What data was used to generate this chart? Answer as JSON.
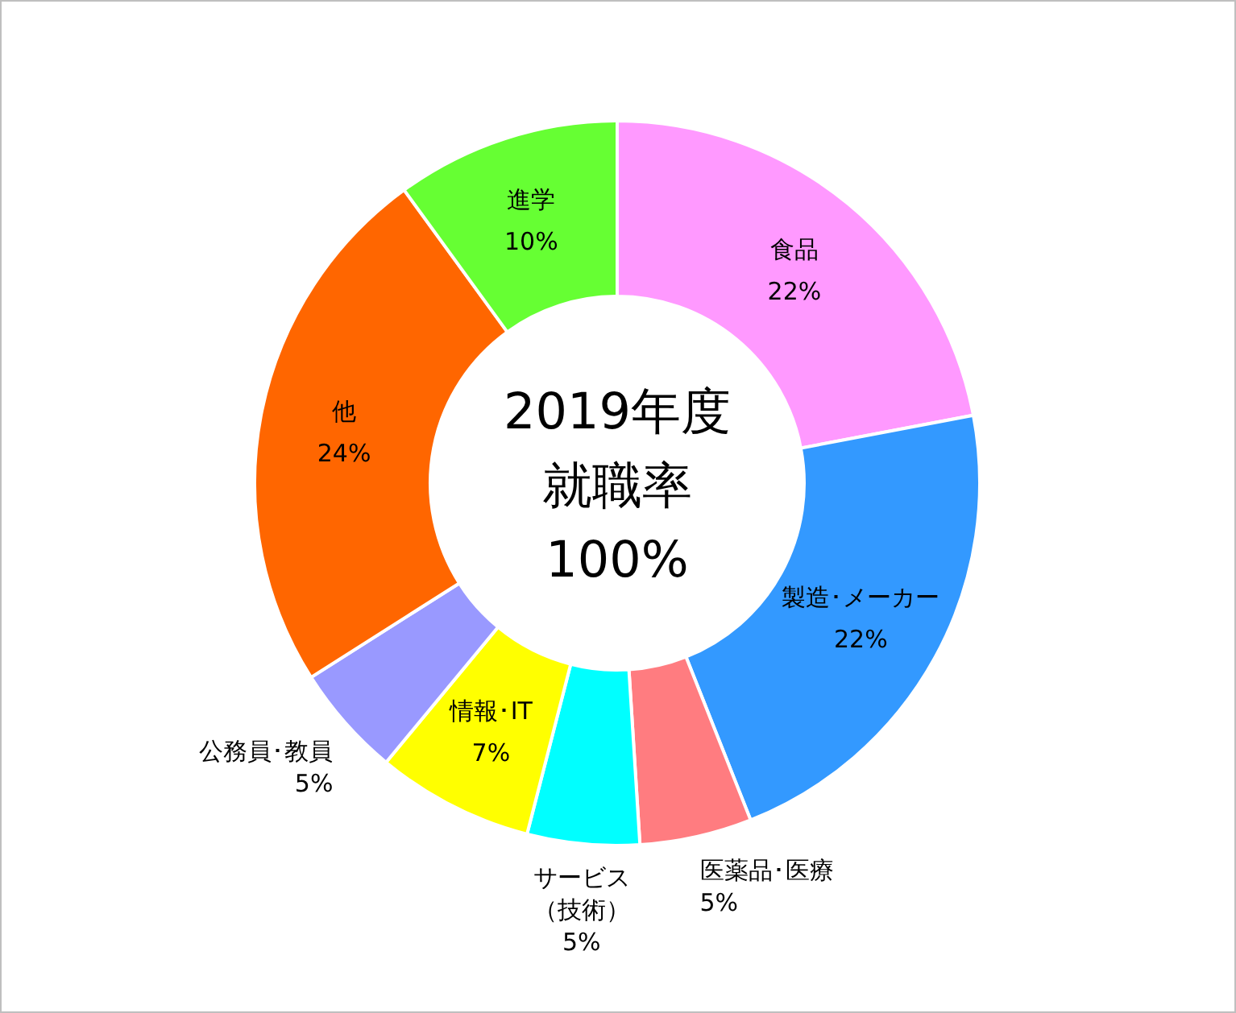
{
  "chart_data": {
    "type": "donut",
    "categories": [
      "食品",
      "製造･メーカー",
      "医薬品･医療",
      "サービス（技術）",
      "情報･IT",
      "公務員･教員",
      "他",
      "進学"
    ],
    "values": [
      22,
      22,
      5,
      5,
      7,
      5,
      24,
      10
    ],
    "value_labels": [
      "22%",
      "22%",
      "5%",
      "5%",
      "7%",
      "5%",
      "24%",
      "10%"
    ],
    "colors": [
      "#ff99ff",
      "#3399ff",
      "#ff7c80",
      "#00ffff",
      "#ffff00",
      "#9999ff",
      "#ff6600",
      "#66ff33"
    ],
    "annotations": [
      "2019年度",
      "就職率",
      "100%"
    ],
    "legend": false
  }
}
